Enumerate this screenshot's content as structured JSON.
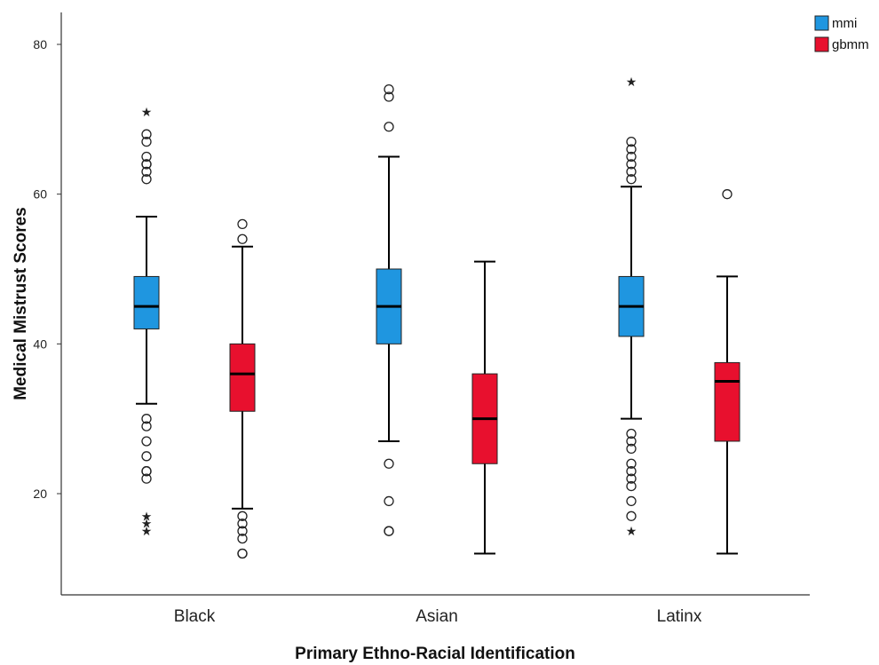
{
  "chart_data": {
    "type": "boxplot",
    "title": "",
    "xlabel": "Primary Ethno-Racial Identification",
    "ylabel": "Medical Mistrust Scores",
    "ylim": [
      8,
      84
    ],
    "yticks": [
      20,
      40,
      60,
      80
    ],
    "categories": [
      "Black",
      "Asian",
      "Latinx"
    ],
    "grid": false,
    "legend": {
      "position": "top-right",
      "entries": [
        {
          "name": "mmi",
          "color": "#1f96e0"
        },
        {
          "name": "gbmm",
          "color": "#e8102e"
        }
      ]
    },
    "series": [
      {
        "name": "mmi",
        "color": "#1f96e0",
        "boxes": [
          {
            "category": "Black",
            "whisker_low": 32,
            "q1": 42,
            "median": 45,
            "q3": 49,
            "whisker_high": 57,
            "outliers": [
              62,
              63,
              64,
              64,
              65,
              67,
              68,
              30,
              29,
              27,
              25,
              23,
              23,
              22
            ],
            "extremes": [
              71,
              17,
              16,
              15
            ]
          },
          {
            "category": "Asian",
            "whisker_low": 27,
            "q1": 40,
            "median": 45,
            "q3": 50,
            "whisker_high": 65,
            "outliers": [
              69,
              73,
              74,
              24,
              19,
              15,
              15
            ],
            "extremes": []
          },
          {
            "category": "Latinx",
            "whisker_low": 30,
            "q1": 41,
            "median": 45,
            "q3": 49,
            "whisker_high": 61,
            "outliers": [
              62,
              63,
              64,
              65,
              66,
              67,
              28,
              27,
              26,
              24,
              23,
              22,
              21,
              19,
              17
            ],
            "extremes": [
              75,
              15
            ]
          }
        ]
      },
      {
        "name": "gbmm",
        "color": "#e8102e",
        "boxes": [
          {
            "category": "Black",
            "whisker_low": 18,
            "q1": 31,
            "median": 36,
            "q3": 40,
            "whisker_high": 53,
            "outliers": [
              54,
              56,
              17,
              16,
              15,
              14,
              12,
              12
            ],
            "extremes": []
          },
          {
            "category": "Asian",
            "whisker_low": 12,
            "q1": 24,
            "median": 30,
            "q3": 36,
            "whisker_high": 51,
            "outliers": [],
            "extremes": []
          },
          {
            "category": "Latinx",
            "whisker_low": 12,
            "q1": 27,
            "median": 35,
            "q3": 37.5,
            "whisker_high": 49,
            "outliers": [
              60
            ],
            "extremes": []
          }
        ]
      }
    ]
  }
}
